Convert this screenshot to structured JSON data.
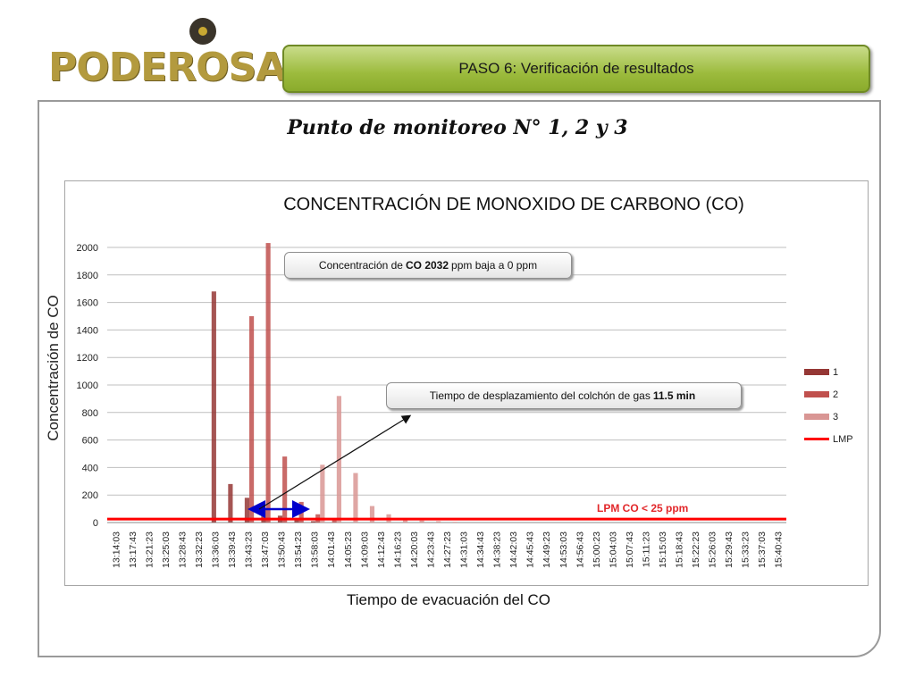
{
  "header": {
    "logo_text": "PODEROSA",
    "step_label": "PASO 6: Verificación de resultados"
  },
  "slide": {
    "title": "Punto de monitoreo N° 1, 2 y 3"
  },
  "colors": {
    "banner": "#9cbb3d",
    "series_1": "#953735",
    "series_2": "#c0504d",
    "series_3": "#d99694",
    "lmp": "#ff0000",
    "arrow": "#0000cc"
  },
  "annotations": {
    "peak_prefix": "Concentración de",
    "peak_bold": "CO 2032",
    "peak_suffix": "ppm baja a 0 ppm",
    "displacement_prefix": "Tiempo de desplazamiento del colchón de gas",
    "displacement_bold": "11.5 min",
    "lpm_label": "LPM CO < 25 ppm"
  },
  "chart_data": {
    "type": "bar",
    "title": "CONCENTRACIÓN DE MONOXIDO DE CARBONO (CO)",
    "xlabel": "Tiempo de evacuación del CO",
    "ylabel": "Concentración de CO",
    "ylim": [
      0,
      2000
    ],
    "yticks": [
      0,
      200,
      400,
      600,
      800,
      1000,
      1200,
      1400,
      1600,
      1800,
      2000
    ],
    "grid": true,
    "legend_position": "right",
    "categories": [
      "13:14:03",
      "13:17:43",
      "13:21:23",
      "13:25:03",
      "13:28:43",
      "13:32:23",
      "13:36:03",
      "13:39:43",
      "13:43:23",
      "13:47:03",
      "13:50:43",
      "13:54:23",
      "13:58:03",
      "14:01:43",
      "14:05:23",
      "14:09:03",
      "14:12:43",
      "14:16:23",
      "14:20:03",
      "14:23:43",
      "14:27:23",
      "14:31:03",
      "14:34:43",
      "14:38:23",
      "14:42:03",
      "14:45:43",
      "14:49:23",
      "14:53:03",
      "14:56:43",
      "15:00:23",
      "15:04:03",
      "15:07:43",
      "15:11:23",
      "15:15:03",
      "15:18:43",
      "15:22:23",
      "15:26:03",
      "15:29:43",
      "15:33:23",
      "15:37:03",
      "15:40:43"
    ],
    "series": [
      {
        "name": "1",
        "values": [
          0,
          0,
          0,
          0,
          0,
          0,
          1680,
          280,
          180,
          90,
          50,
          30,
          10,
          0,
          0,
          0,
          0,
          0,
          0,
          0,
          0,
          0,
          0,
          0,
          0,
          0,
          0,
          0,
          0,
          0,
          0,
          0,
          0,
          0,
          0,
          0,
          0,
          0,
          0,
          0,
          0
        ]
      },
      {
        "name": "2",
        "values": [
          0,
          0,
          0,
          0,
          0,
          0,
          0,
          0,
          1500,
          2032,
          480,
          150,
          60,
          20,
          0,
          0,
          0,
          0,
          0,
          0,
          0,
          0,
          0,
          0,
          0,
          0,
          0,
          0,
          0,
          0,
          0,
          0,
          0,
          0,
          0,
          0,
          0,
          0,
          0,
          0,
          0
        ]
      },
      {
        "name": "3",
        "values": [
          0,
          0,
          0,
          0,
          0,
          0,
          0,
          0,
          0,
          0,
          0,
          0,
          420,
          920,
          360,
          120,
          60,
          30,
          15,
          10,
          5,
          0,
          0,
          0,
          0,
          0,
          0,
          0,
          0,
          0,
          0,
          0,
          0,
          0,
          0,
          0,
          0,
          0,
          0,
          0,
          0
        ]
      },
      {
        "name": "LMP",
        "type": "line",
        "values": [
          25,
          25,
          25,
          25,
          25,
          25,
          25,
          25,
          25,
          25,
          25,
          25,
          25,
          25,
          25,
          25,
          25,
          25,
          25,
          25,
          25,
          25,
          25,
          25,
          25,
          25,
          25,
          25,
          25,
          25,
          25,
          25,
          25,
          25,
          25,
          25,
          25,
          25,
          25,
          25,
          25
        ]
      }
    ]
  }
}
